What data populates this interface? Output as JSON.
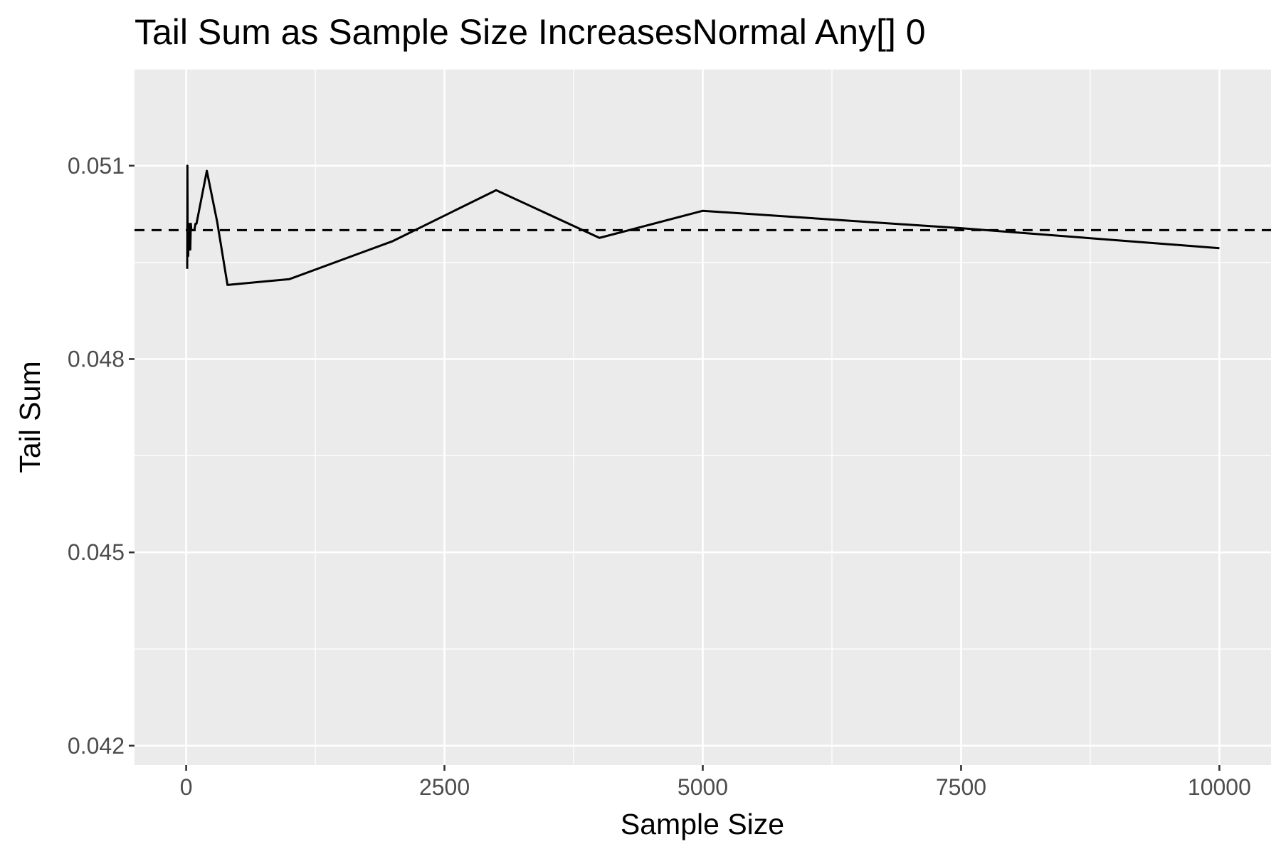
{
  "chart_data": {
    "type": "line",
    "title": "Tail Sum as Sample Size IncreasesNormal Any[] 0",
    "xlabel": "Sample Size",
    "ylabel": "Tail Sum",
    "xlim": [
      -500,
      10500
    ],
    "ylim": [
      0.0417,
      0.0525
    ],
    "x_ticks": [
      0,
      2500,
      5000,
      7500,
      10000
    ],
    "x_tick_labels": [
      "0",
      "2500",
      "5000",
      "7500",
      "10000"
    ],
    "y_ticks": [
      0.042,
      0.045,
      0.048,
      0.051
    ],
    "y_tick_labels": [
      "0.042",
      "0.045",
      "0.048",
      "0.051"
    ],
    "grid": true,
    "colors": {
      "panel_background": "#ebebeb",
      "grid": "#ffffff",
      "line": "#000000",
      "tick": "#333333"
    },
    "series": [
      {
        "x": [
          10,
          12,
          15,
          18,
          20,
          25,
          30,
          35,
          40,
          45,
          50,
          60,
          70,
          80,
          90,
          100,
          200,
          300,
          400,
          1000,
          2000,
          3000,
          4000,
          5000,
          7500,
          10000
        ],
        "y": [
          0.0494,
          0.051,
          0.0497,
          0.05,
          0.0496,
          0.0501,
          0.0497,
          0.05,
          0.0497,
          0.0501,
          0.05,
          0.05,
          0.05,
          0.05,
          0.0501,
          0.0501,
          0.05092,
          0.05013,
          0.04915,
          0.04924,
          0.04983,
          0.05062,
          0.04988,
          0.0503,
          0.05003,
          0.04972
        ]
      }
    ],
    "reference_line": {
      "y": 0.05,
      "style": "dashed"
    }
  }
}
